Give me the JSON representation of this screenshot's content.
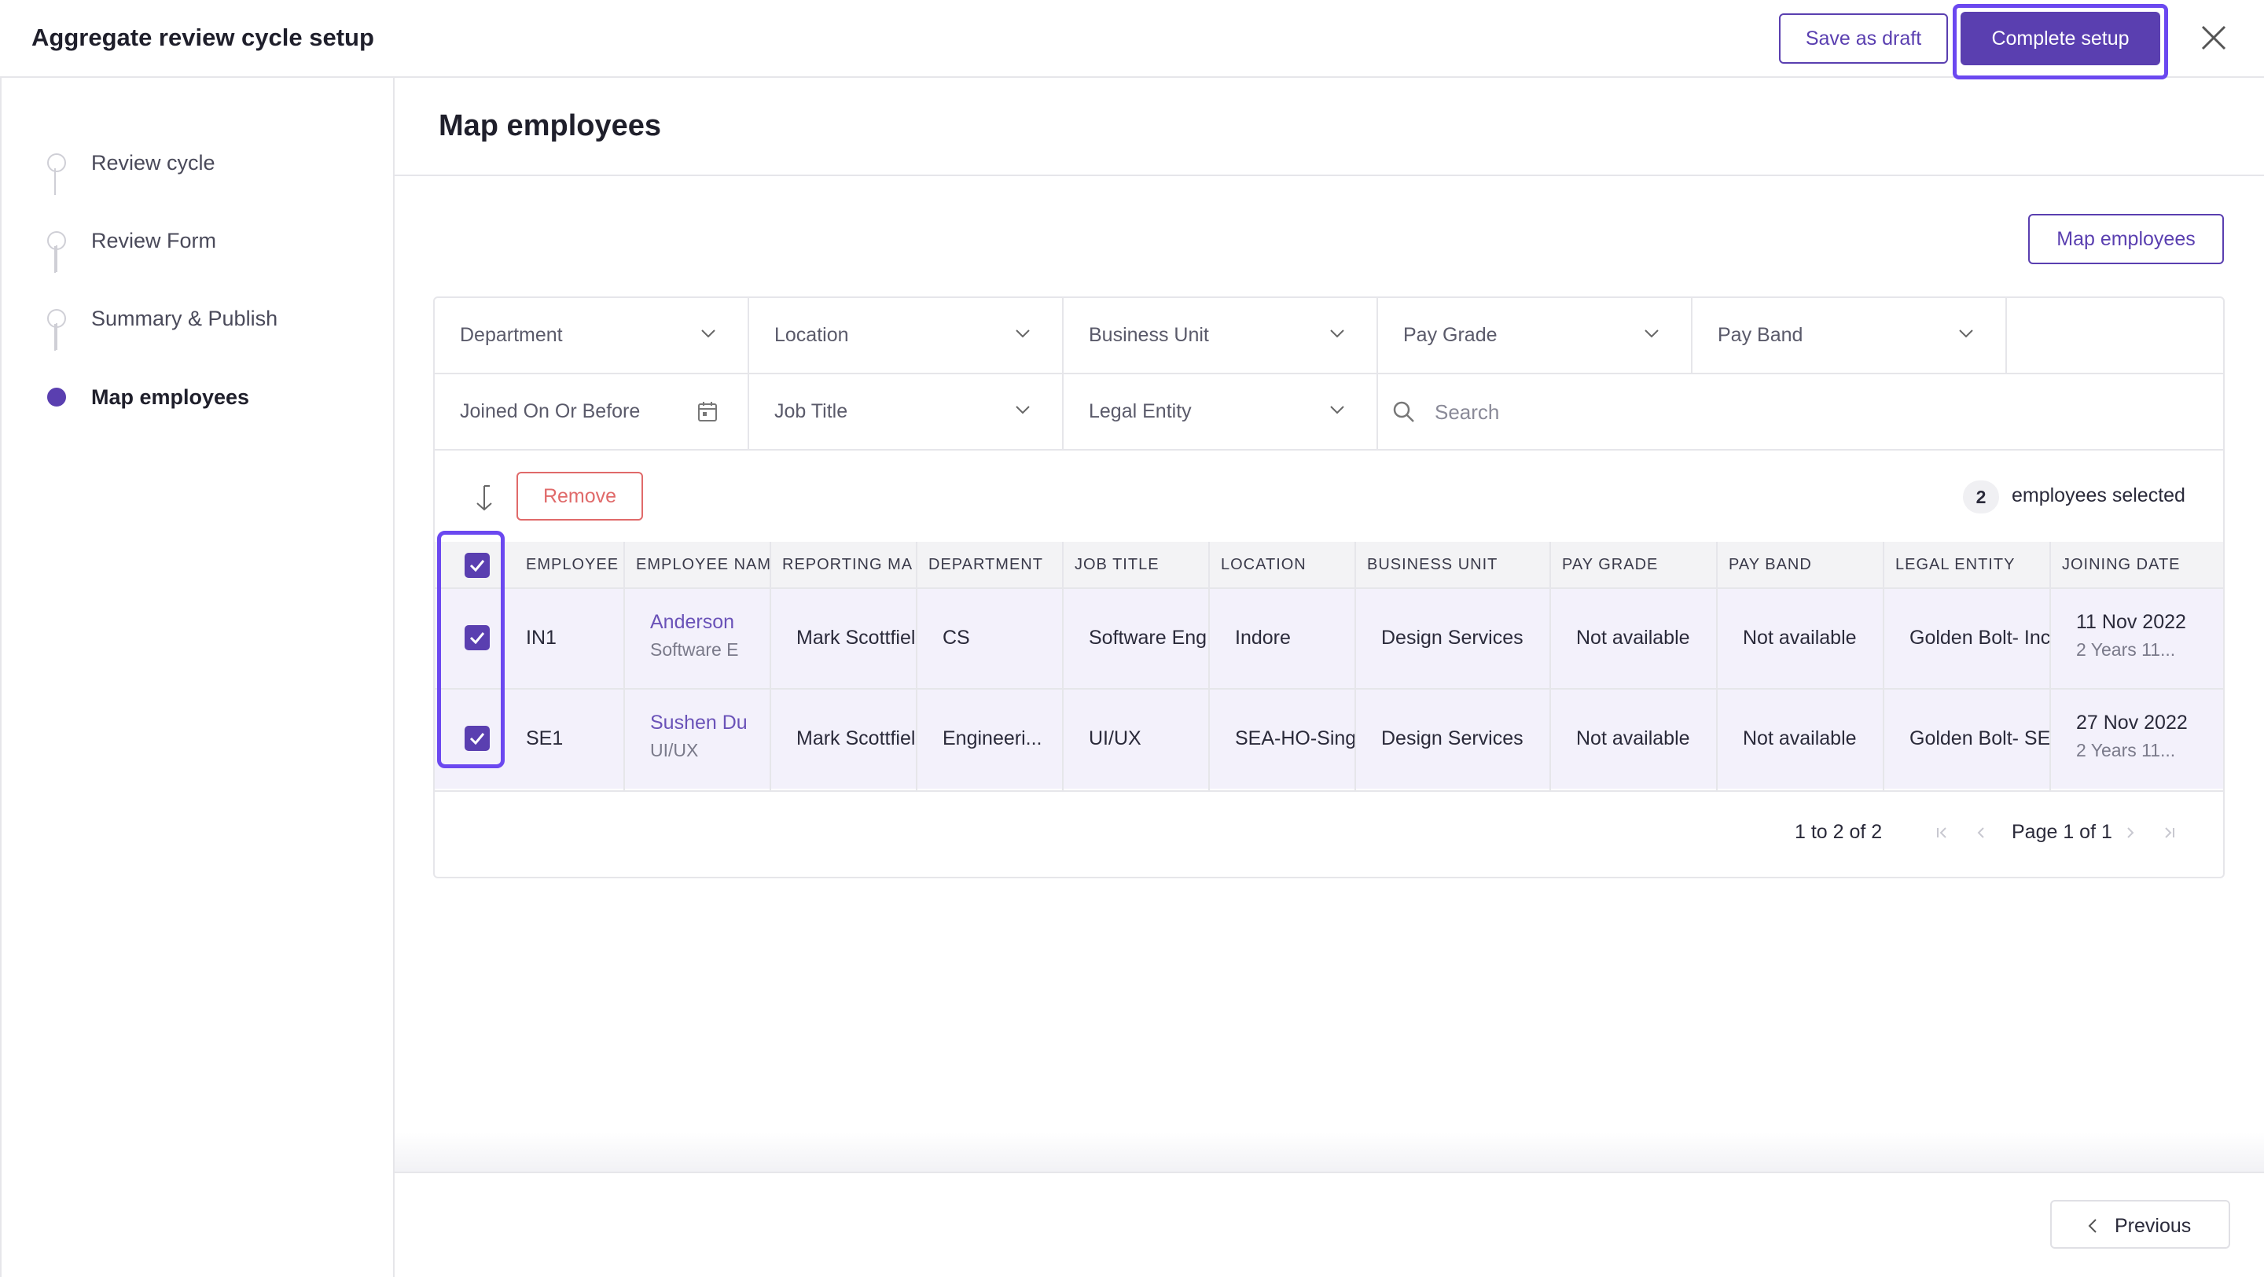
{
  "header": {
    "title": "Aggregate review cycle setup",
    "save_draft_label": "Save as draft",
    "complete_label": "Complete setup"
  },
  "sidebar": {
    "steps": [
      {
        "label": "Review cycle",
        "active": false
      },
      {
        "label": "Review Form",
        "active": false
      },
      {
        "label": "Summary & Publish",
        "active": false
      },
      {
        "label": "Map employees",
        "active": true
      }
    ]
  },
  "main": {
    "title": "Map employees",
    "map_button_label": "Map employees",
    "filters": {
      "row1": [
        "Department",
        "Location",
        "Business Unit",
        "Pay Grade",
        "Pay Band"
      ],
      "row2": [
        "Joined On Or Before",
        "Job Title",
        "Legal Entity"
      ],
      "search_placeholder": "Search"
    },
    "actions": {
      "remove_label": "Remove",
      "selected_count": "2",
      "selected_text": "employees selected"
    },
    "table": {
      "columns": [
        "EMPLOYEE",
        "EMPLOYEE NAME",
        "REPORTING MA",
        "DEPARTMENT",
        "JOB TITLE",
        "LOCATION",
        "BUSINESS UNIT",
        "PAY GRADE",
        "PAY BAND",
        "LEGAL ENTITY",
        "JOINING DATE"
      ],
      "rows": [
        {
          "id": "IN1",
          "name": "Anderson",
          "name_sub": "Software E",
          "manager": "Mark Scottfiel",
          "department": "CS",
          "job_title": "Software Eng",
          "location": "Indore",
          "business_unit": "Design Services",
          "pay_grade": "Not available",
          "pay_band": "Not available",
          "legal_entity": "Golden Bolt- Inc",
          "joining_date": "11 Nov 2022",
          "joining_sub": "2 Years 11..."
        },
        {
          "id": "SE1",
          "name": "Sushen Du",
          "name_sub": "UI/UX",
          "manager": "Mark Scottfiel",
          "department": "Engineeri...",
          "job_title": "UI/UX",
          "location": "SEA-HO-Sing",
          "business_unit": "Design Services",
          "pay_grade": "Not available",
          "pay_band": "Not available",
          "legal_entity": "Golden Bolt- SE",
          "joining_date": "27 Nov 2022",
          "joining_sub": "2 Years 11..."
        }
      ]
    },
    "pagination": {
      "range": "1 to 2 of 2",
      "page": "Page 1 of 1"
    }
  },
  "footer": {
    "previous_label": "Previous"
  }
}
